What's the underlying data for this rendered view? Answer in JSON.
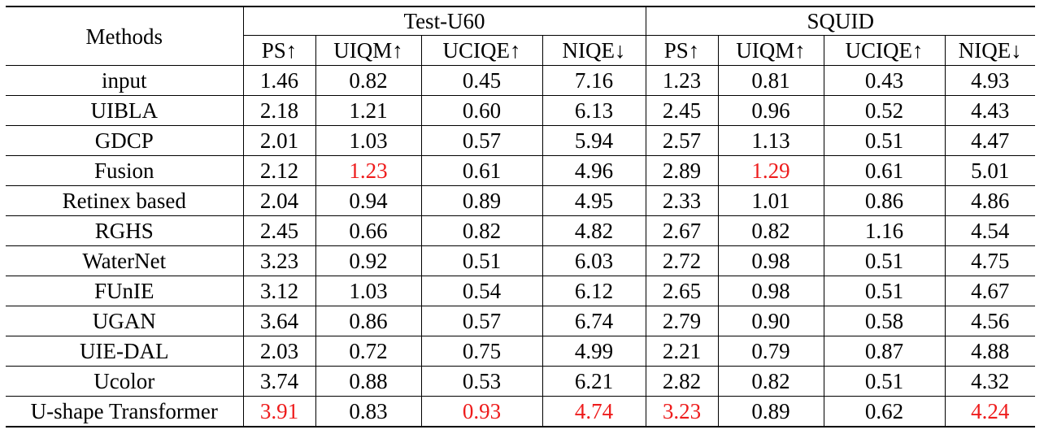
{
  "table": {
    "methods_header": "Methods",
    "groups": [
      "Test-U60",
      "SQUID"
    ],
    "subcolumns": [
      "PS↑",
      "UIQM↑",
      "UCIQE↑",
      "NIQE↓"
    ],
    "rows": [
      {
        "method": "input",
        "cells": [
          {
            "v": "1.46"
          },
          {
            "v": "0.82"
          },
          {
            "v": "0.45"
          },
          {
            "v": "7.16"
          },
          {
            "v": "1.23"
          },
          {
            "v": "0.81"
          },
          {
            "v": "0.43"
          },
          {
            "v": "4.93"
          }
        ]
      },
      {
        "method": "UIBLA",
        "cells": [
          {
            "v": "2.18"
          },
          {
            "v": "1.21"
          },
          {
            "v": "0.60"
          },
          {
            "v": "6.13"
          },
          {
            "v": "2.45"
          },
          {
            "v": "0.96"
          },
          {
            "v": "0.52"
          },
          {
            "v": "4.43"
          }
        ]
      },
      {
        "method": "GDCP",
        "cells": [
          {
            "v": "2.01"
          },
          {
            "v": "1.03"
          },
          {
            "v": "0.57"
          },
          {
            "v": "5.94"
          },
          {
            "v": "2.57"
          },
          {
            "v": "1.13"
          },
          {
            "v": "0.51"
          },
          {
            "v": "4.47"
          }
        ]
      },
      {
        "method": "Fusion",
        "cells": [
          {
            "v": "2.12"
          },
          {
            "v": "1.23",
            "red": true
          },
          {
            "v": "0.61"
          },
          {
            "v": "4.96"
          },
          {
            "v": "2.89"
          },
          {
            "v": "1.29",
            "red": true
          },
          {
            "v": "0.61"
          },
          {
            "v": "5.01"
          }
        ]
      },
      {
        "method": "Retinex based",
        "cells": [
          {
            "v": "2.04"
          },
          {
            "v": "0.94"
          },
          {
            "v": "0.89"
          },
          {
            "v": "4.95"
          },
          {
            "v": "2.33"
          },
          {
            "v": "1.01"
          },
          {
            "v": "0.86"
          },
          {
            "v": "4.86"
          }
        ]
      },
      {
        "method": "RGHS",
        "cells": [
          {
            "v": "2.45"
          },
          {
            "v": "0.66"
          },
          {
            "v": "0.82"
          },
          {
            "v": "4.82"
          },
          {
            "v": "2.67"
          },
          {
            "v": "0.82"
          },
          {
            "v": "1.16"
          },
          {
            "v": "4.54"
          }
        ]
      },
      {
        "method": "WaterNet",
        "cells": [
          {
            "v": "3.23"
          },
          {
            "v": "0.92"
          },
          {
            "v": "0.51"
          },
          {
            "v": "6.03"
          },
          {
            "v": "2.72"
          },
          {
            "v": "0.98"
          },
          {
            "v": "0.51"
          },
          {
            "v": "4.75"
          }
        ]
      },
      {
        "method": "FUnIE",
        "cells": [
          {
            "v": "3.12"
          },
          {
            "v": "1.03"
          },
          {
            "v": "0.54"
          },
          {
            "v": "6.12"
          },
          {
            "v": "2.65"
          },
          {
            "v": "0.98"
          },
          {
            "v": "0.51"
          },
          {
            "v": "4.67"
          }
        ]
      },
      {
        "method": "UGAN",
        "cells": [
          {
            "v": "3.64"
          },
          {
            "v": "0.86"
          },
          {
            "v": "0.57"
          },
          {
            "v": "6.74"
          },
          {
            "v": "2.79"
          },
          {
            "v": "0.90"
          },
          {
            "v": "0.58"
          },
          {
            "v": "4.56"
          }
        ]
      },
      {
        "method": "UIE-DAL",
        "cells": [
          {
            "v": "2.03"
          },
          {
            "v": "0.72"
          },
          {
            "v": "0.75"
          },
          {
            "v": "4.99"
          },
          {
            "v": "2.21"
          },
          {
            "v": "0.79"
          },
          {
            "v": "0.87"
          },
          {
            "v": "4.88"
          }
        ]
      },
      {
        "method": "Ucolor",
        "cells": [
          {
            "v": "3.74"
          },
          {
            "v": "0.88"
          },
          {
            "v": "0.53"
          },
          {
            "v": "6.21"
          },
          {
            "v": "2.82"
          },
          {
            "v": "0.82"
          },
          {
            "v": "0.51"
          },
          {
            "v": "4.32"
          }
        ]
      },
      {
        "method": "U-shape Transformer",
        "cells": [
          {
            "v": "3.91",
            "red": true
          },
          {
            "v": "0.83"
          },
          {
            "v": "0.93",
            "red": true
          },
          {
            "v": "4.74",
            "red": true
          },
          {
            "v": "3.23",
            "red": true
          },
          {
            "v": "0.89"
          },
          {
            "v": "0.62"
          },
          {
            "v": "4.24",
            "red": true
          }
        ]
      }
    ],
    "section_breaks_after_rows": [
      2,
      5
    ],
    "highlight_color": "#ee1c1c"
  }
}
